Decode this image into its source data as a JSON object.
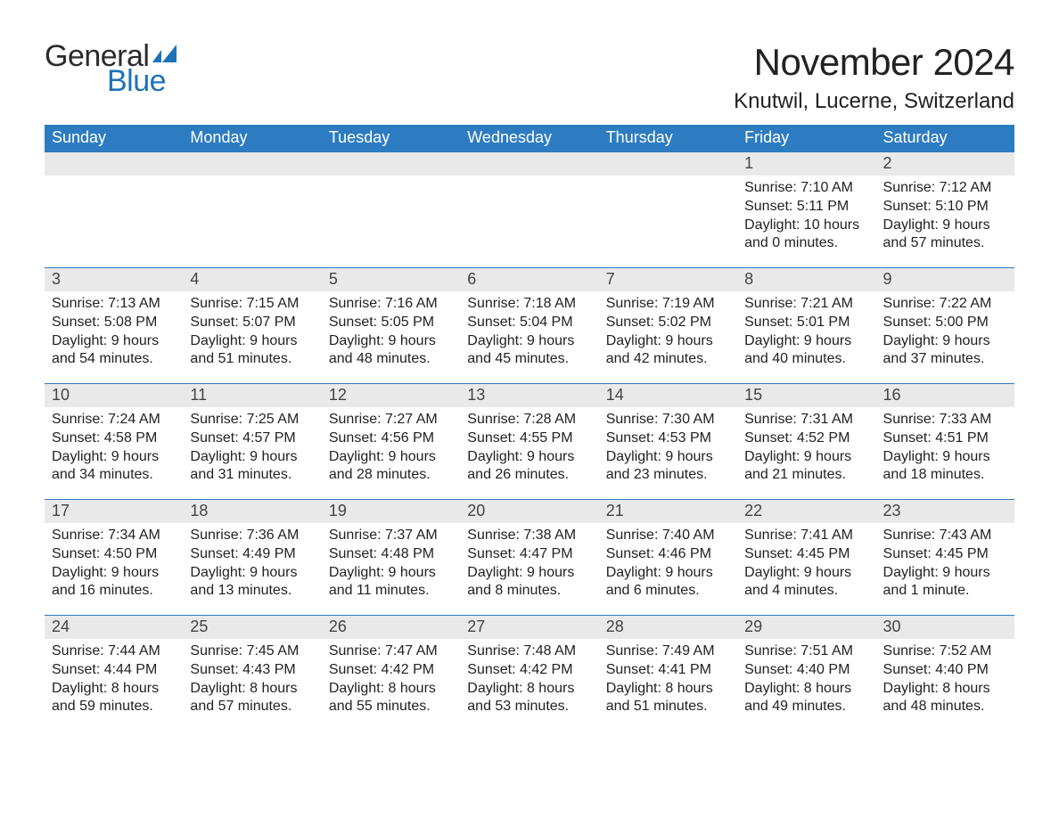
{
  "logo": {
    "general": "General",
    "blue": "Blue",
    "flag_color": "#1d72b8"
  },
  "title": "November 2024",
  "location": "Knutwil, Lucerne, Switzerland",
  "colors": {
    "header_bg": "#2d7cc1",
    "header_text": "#ffffff",
    "daynum_bg": "#e9e9e9",
    "row_border": "#2d7cc1",
    "text": "#222222",
    "background": "#ffffff",
    "logo_blue": "#1d72b8",
    "logo_dark": "#2b2b2b"
  },
  "typography": {
    "title_fontsize": 42,
    "location_fontsize": 24,
    "weekday_fontsize": 18,
    "daynum_fontsize": 18,
    "body_fontsize": 16,
    "font_family": "Helvetica Neue, Arial, sans-serif"
  },
  "labels": {
    "sunrise": "Sunrise",
    "sunset": "Sunset",
    "daylight": "Daylight"
  },
  "weekdays": [
    "Sunday",
    "Monday",
    "Tuesday",
    "Wednesday",
    "Thursday",
    "Friday",
    "Saturday"
  ],
  "weeks": [
    [
      null,
      null,
      null,
      null,
      null,
      {
        "n": "1",
        "sunrise": "7:10 AM",
        "sunset": "5:11 PM",
        "daylight_h": 10,
        "daylight_m": 0
      },
      {
        "n": "2",
        "sunrise": "7:12 AM",
        "sunset": "5:10 PM",
        "daylight_h": 9,
        "daylight_m": 57
      }
    ],
    [
      {
        "n": "3",
        "sunrise": "7:13 AM",
        "sunset": "5:08 PM",
        "daylight_h": 9,
        "daylight_m": 54
      },
      {
        "n": "4",
        "sunrise": "7:15 AM",
        "sunset": "5:07 PM",
        "daylight_h": 9,
        "daylight_m": 51
      },
      {
        "n": "5",
        "sunrise": "7:16 AM",
        "sunset": "5:05 PM",
        "daylight_h": 9,
        "daylight_m": 48
      },
      {
        "n": "6",
        "sunrise": "7:18 AM",
        "sunset": "5:04 PM",
        "daylight_h": 9,
        "daylight_m": 45
      },
      {
        "n": "7",
        "sunrise": "7:19 AM",
        "sunset": "5:02 PM",
        "daylight_h": 9,
        "daylight_m": 42
      },
      {
        "n": "8",
        "sunrise": "7:21 AM",
        "sunset": "5:01 PM",
        "daylight_h": 9,
        "daylight_m": 40
      },
      {
        "n": "9",
        "sunrise": "7:22 AM",
        "sunset": "5:00 PM",
        "daylight_h": 9,
        "daylight_m": 37
      }
    ],
    [
      {
        "n": "10",
        "sunrise": "7:24 AM",
        "sunset": "4:58 PM",
        "daylight_h": 9,
        "daylight_m": 34
      },
      {
        "n": "11",
        "sunrise": "7:25 AM",
        "sunset": "4:57 PM",
        "daylight_h": 9,
        "daylight_m": 31
      },
      {
        "n": "12",
        "sunrise": "7:27 AM",
        "sunset": "4:56 PM",
        "daylight_h": 9,
        "daylight_m": 28
      },
      {
        "n": "13",
        "sunrise": "7:28 AM",
        "sunset": "4:55 PM",
        "daylight_h": 9,
        "daylight_m": 26
      },
      {
        "n": "14",
        "sunrise": "7:30 AM",
        "sunset": "4:53 PM",
        "daylight_h": 9,
        "daylight_m": 23
      },
      {
        "n": "15",
        "sunrise": "7:31 AM",
        "sunset": "4:52 PM",
        "daylight_h": 9,
        "daylight_m": 21
      },
      {
        "n": "16",
        "sunrise": "7:33 AM",
        "sunset": "4:51 PM",
        "daylight_h": 9,
        "daylight_m": 18
      }
    ],
    [
      {
        "n": "17",
        "sunrise": "7:34 AM",
        "sunset": "4:50 PM",
        "daylight_h": 9,
        "daylight_m": 16
      },
      {
        "n": "18",
        "sunrise": "7:36 AM",
        "sunset": "4:49 PM",
        "daylight_h": 9,
        "daylight_m": 13
      },
      {
        "n": "19",
        "sunrise": "7:37 AM",
        "sunset": "4:48 PM",
        "daylight_h": 9,
        "daylight_m": 11
      },
      {
        "n": "20",
        "sunrise": "7:38 AM",
        "sunset": "4:47 PM",
        "daylight_h": 9,
        "daylight_m": 8
      },
      {
        "n": "21",
        "sunrise": "7:40 AM",
        "sunset": "4:46 PM",
        "daylight_h": 9,
        "daylight_m": 6
      },
      {
        "n": "22",
        "sunrise": "7:41 AM",
        "sunset": "4:45 PM",
        "daylight_h": 9,
        "daylight_m": 4
      },
      {
        "n": "23",
        "sunrise": "7:43 AM",
        "sunset": "4:45 PM",
        "daylight_h": 9,
        "daylight_m": 1
      }
    ],
    [
      {
        "n": "24",
        "sunrise": "7:44 AM",
        "sunset": "4:44 PM",
        "daylight_h": 8,
        "daylight_m": 59
      },
      {
        "n": "25",
        "sunrise": "7:45 AM",
        "sunset": "4:43 PM",
        "daylight_h": 8,
        "daylight_m": 57
      },
      {
        "n": "26",
        "sunrise": "7:47 AM",
        "sunset": "4:42 PM",
        "daylight_h": 8,
        "daylight_m": 55
      },
      {
        "n": "27",
        "sunrise": "7:48 AM",
        "sunset": "4:42 PM",
        "daylight_h": 8,
        "daylight_m": 53
      },
      {
        "n": "28",
        "sunrise": "7:49 AM",
        "sunset": "4:41 PM",
        "daylight_h": 8,
        "daylight_m": 51
      },
      {
        "n": "29",
        "sunrise": "7:51 AM",
        "sunset": "4:40 PM",
        "daylight_h": 8,
        "daylight_m": 49
      },
      {
        "n": "30",
        "sunrise": "7:52 AM",
        "sunset": "4:40 PM",
        "daylight_h": 8,
        "daylight_m": 48
      }
    ]
  ]
}
